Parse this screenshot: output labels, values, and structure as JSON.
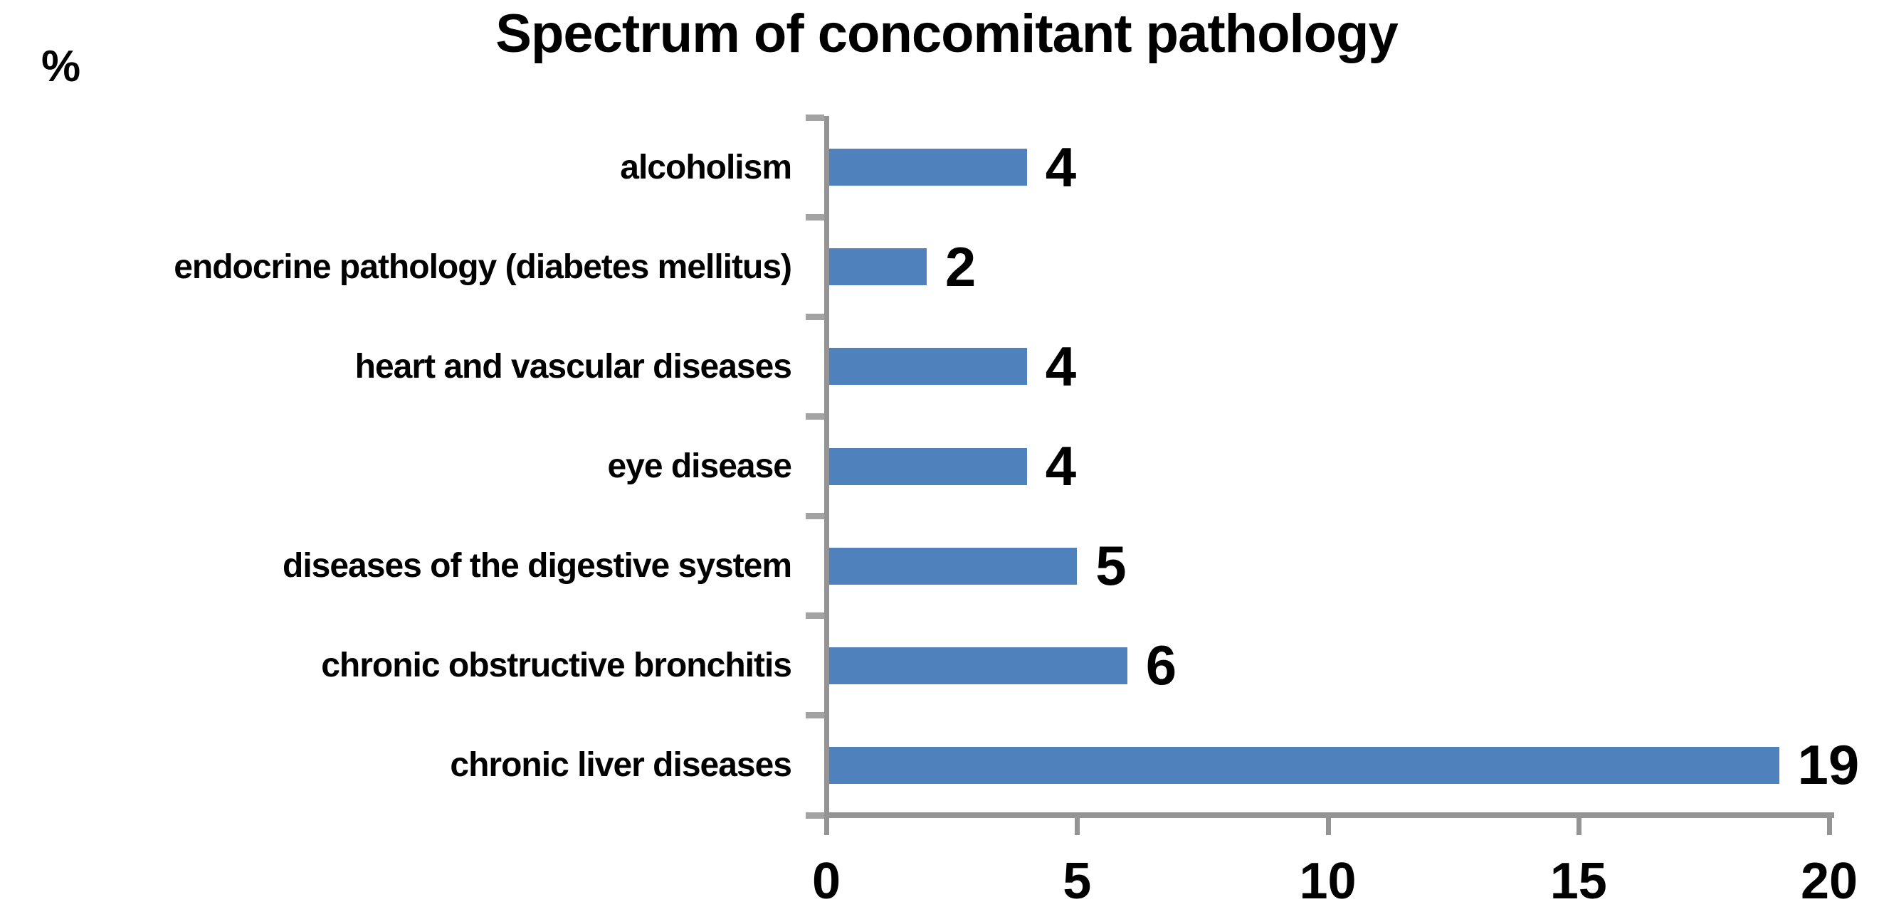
{
  "chart_data": {
    "type": "bar",
    "orientation": "horizontal",
    "title": "Spectrum of concomitant pathology",
    "unit_label": "%",
    "categories": [
      "alcoholism",
      "endocrine pathology (diabetes mellitus)",
      "heart and vascular diseases",
      "eye disease",
      "diseases of the digestive system",
      "chronic obstructive bronchitis",
      "chronic liver diseases"
    ],
    "values": [
      4,
      2,
      4,
      4,
      5,
      6,
      19
    ],
    "data_labels_shown": true,
    "value_axis": {
      "min": 0,
      "max": 20,
      "ticks": [
        0,
        5,
        10,
        15,
        20
      ]
    },
    "legend": "none",
    "grid": "off",
    "colors": {
      "bar": "#4f81bd",
      "axis": "#949494",
      "tick": "#a3a3a3",
      "text": "#000000",
      "background": "#ffffff"
    }
  }
}
